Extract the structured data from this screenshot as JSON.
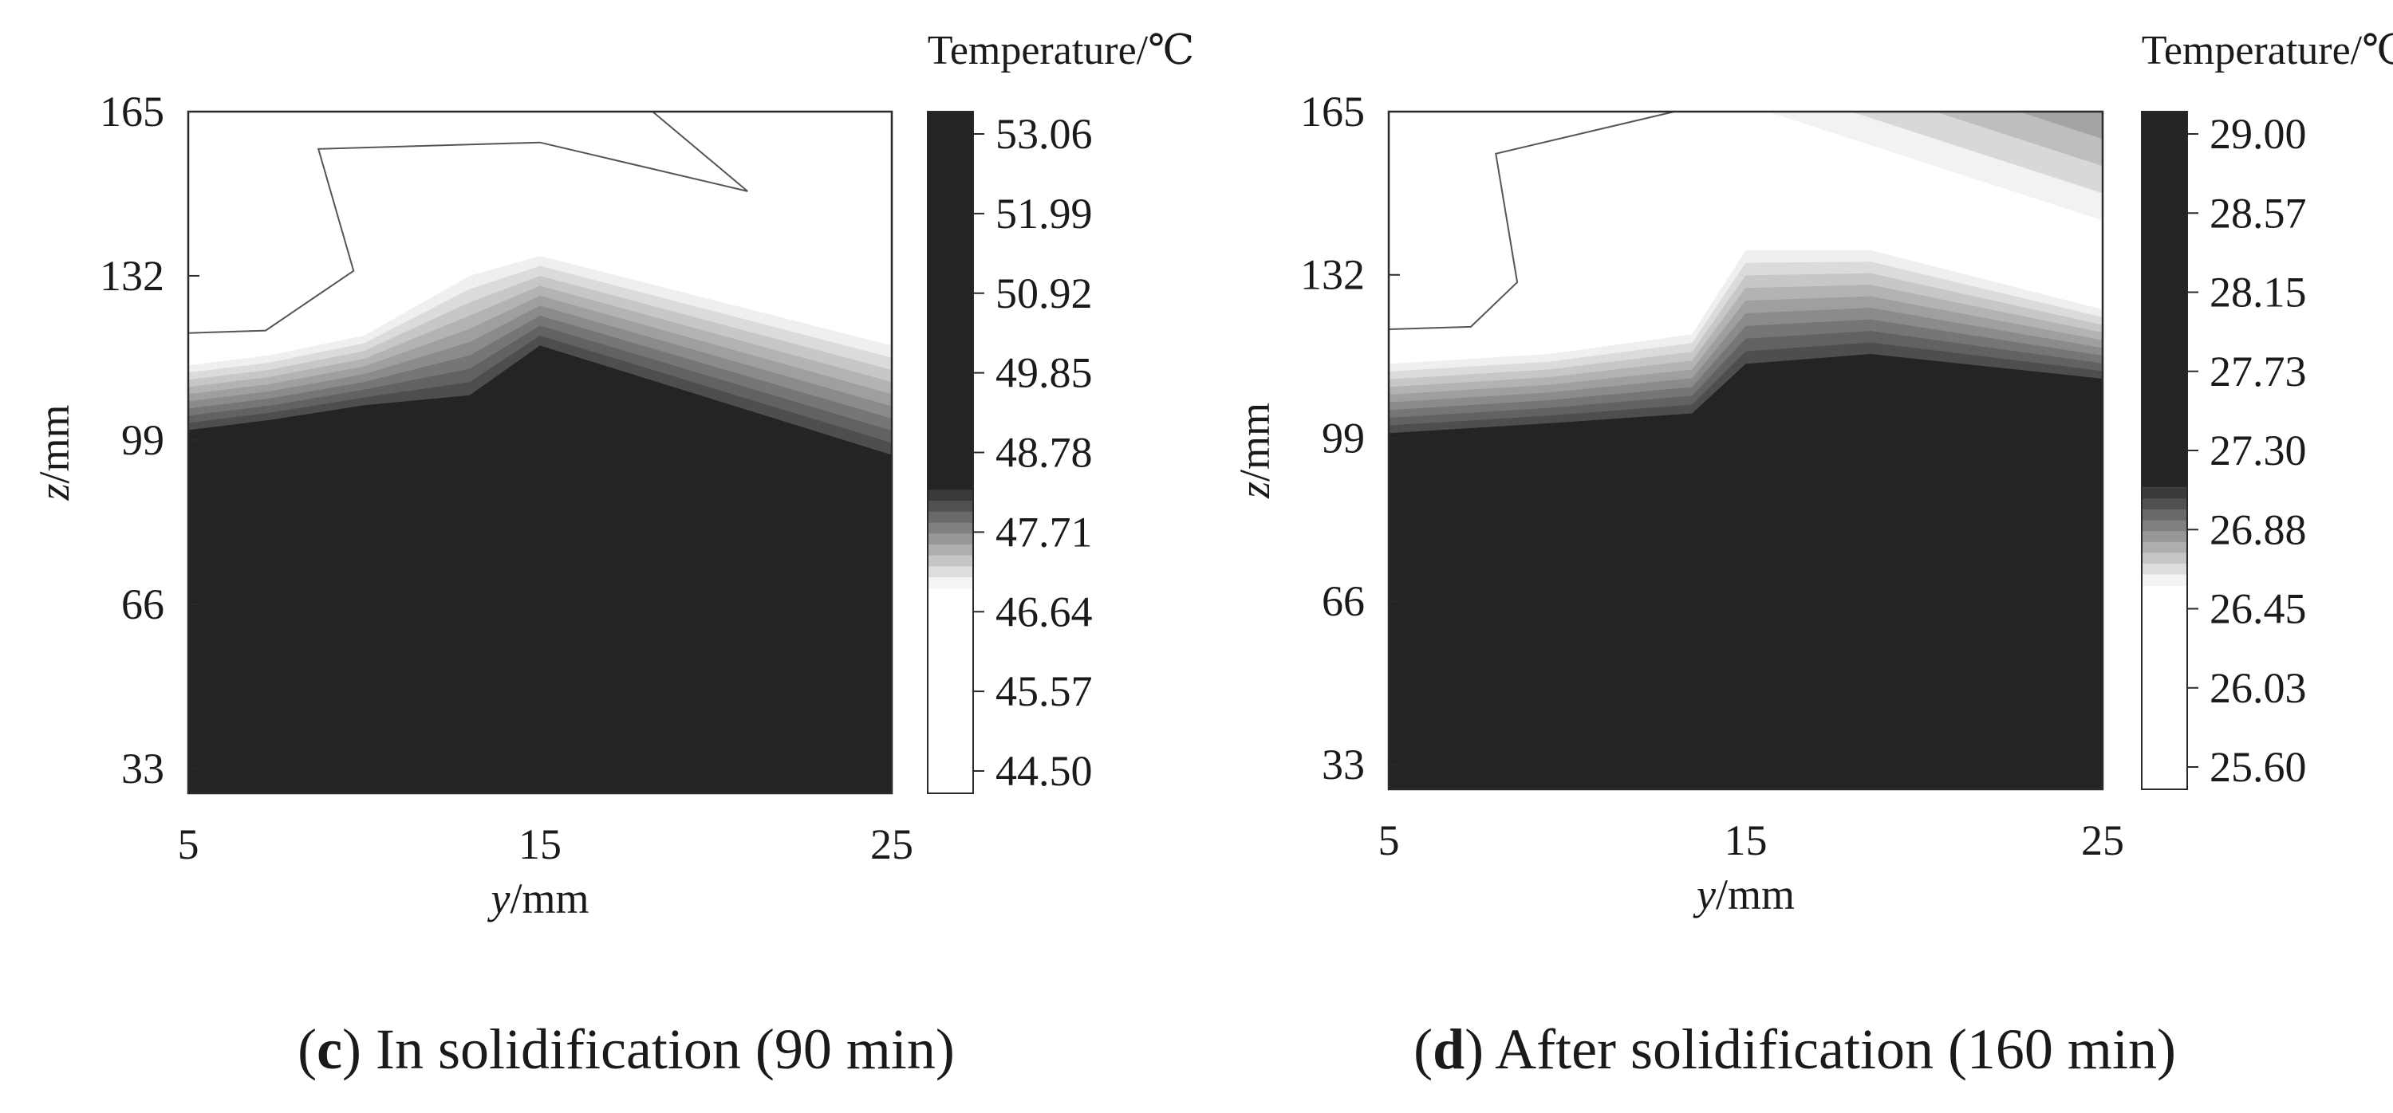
{
  "chart_data": [
    {
      "type": "contour",
      "panel": "c",
      "caption_letter": "c",
      "caption_text": ") In solidification (90 min)",
      "caption_open": "(",
      "colorbar_title": "Temperature/℃",
      "xlabel_var": "y",
      "xlabel_unit": "/mm",
      "ylabel_var": "z",
      "ylabel_unit": "/mm",
      "xlim": [
        5,
        25
      ],
      "ylim": [
        28,
        165
      ],
      "x_ticks": [
        5,
        15,
        25
      ],
      "x_tick_labels": [
        "5",
        "15",
        "25"
      ],
      "y_ticks": [
        33,
        66,
        99,
        132,
        165
      ],
      "y_tick_labels": [
        "33",
        "66",
        "99",
        "132",
        "165"
      ],
      "colorbar_ticks": [
        "53.06",
        "51.99",
        "50.92",
        "49.85",
        "48.78",
        "47.71",
        "46.64",
        "45.57",
        "44.50"
      ],
      "colorbar_range": [
        44.5,
        53.06
      ],
      "colors": {
        "dark": "#242424",
        "light": "#ffffff",
        "line": "#555555"
      },
      "contours": {
        "y": [
          5,
          7.3,
          10,
          13,
          15,
          25
        ],
        "dark_top": [
          101,
          103,
          106,
          108,
          118,
          96
        ],
        "transition_top": [
          114,
          116,
          120,
          132,
          136,
          118
        ],
        "white_region": [
          [
            5,
            120.5
          ],
          [
            7.2,
            121
          ],
          [
            9.7,
            133
          ],
          [
            8.7,
            157.5
          ],
          [
            15,
            158.8
          ],
          [
            20.9,
            149
          ],
          [
            18.2,
            165
          ],
          [
            5,
            165
          ]
        ]
      }
    },
    {
      "type": "contour",
      "panel": "d",
      "caption_letter": "d",
      "caption_text": ") After solidification (160 min)",
      "caption_open": "(",
      "colorbar_title": "Temperature/℃",
      "xlabel_var": "y",
      "xlabel_unit": "/mm",
      "ylabel_var": "z",
      "ylabel_unit": "/mm",
      "xlim": [
        5,
        25
      ],
      "ylim": [
        28,
        165
      ],
      "x_ticks": [
        5,
        15,
        25
      ],
      "x_tick_labels": [
        "5",
        "15",
        "25"
      ],
      "y_ticks": [
        33,
        66,
        99,
        132,
        165
      ],
      "y_tick_labels": [
        "33",
        "66",
        "99",
        "132",
        "165"
      ],
      "colorbar_ticks": [
        "29.00",
        "28.57",
        "28.15",
        "27.73",
        "27.30",
        "26.88",
        "26.45",
        "26.03",
        "25.60"
      ],
      "colorbar_range": [
        25.6,
        29.0
      ],
      "colors": {
        "dark": "#242424",
        "light": "#ffffff",
        "line": "#555555"
      },
      "contours": {
        "y": [
          5,
          9.5,
          13.5,
          15,
          18.5,
          25
        ],
        "dark_top": [
          100,
          102,
          104,
          114,
          116,
          111
        ],
        "transition_top": [
          114,
          116,
          120,
          137,
          137,
          125
        ],
        "white_region": [
          [
            5,
            121
          ],
          [
            7.3,
            121.5
          ],
          [
            8.6,
            130.5
          ],
          [
            8.0,
            156.5
          ],
          [
            13.0,
            165
          ],
          [
            5,
            165
          ]
        ],
        "hot_corner": [
          [
            15.6,
            165
          ],
          [
            22.0,
            165
          ],
          [
            25.0,
            143
          ],
          [
            25.0,
            165
          ]
        ]
      }
    }
  ]
}
